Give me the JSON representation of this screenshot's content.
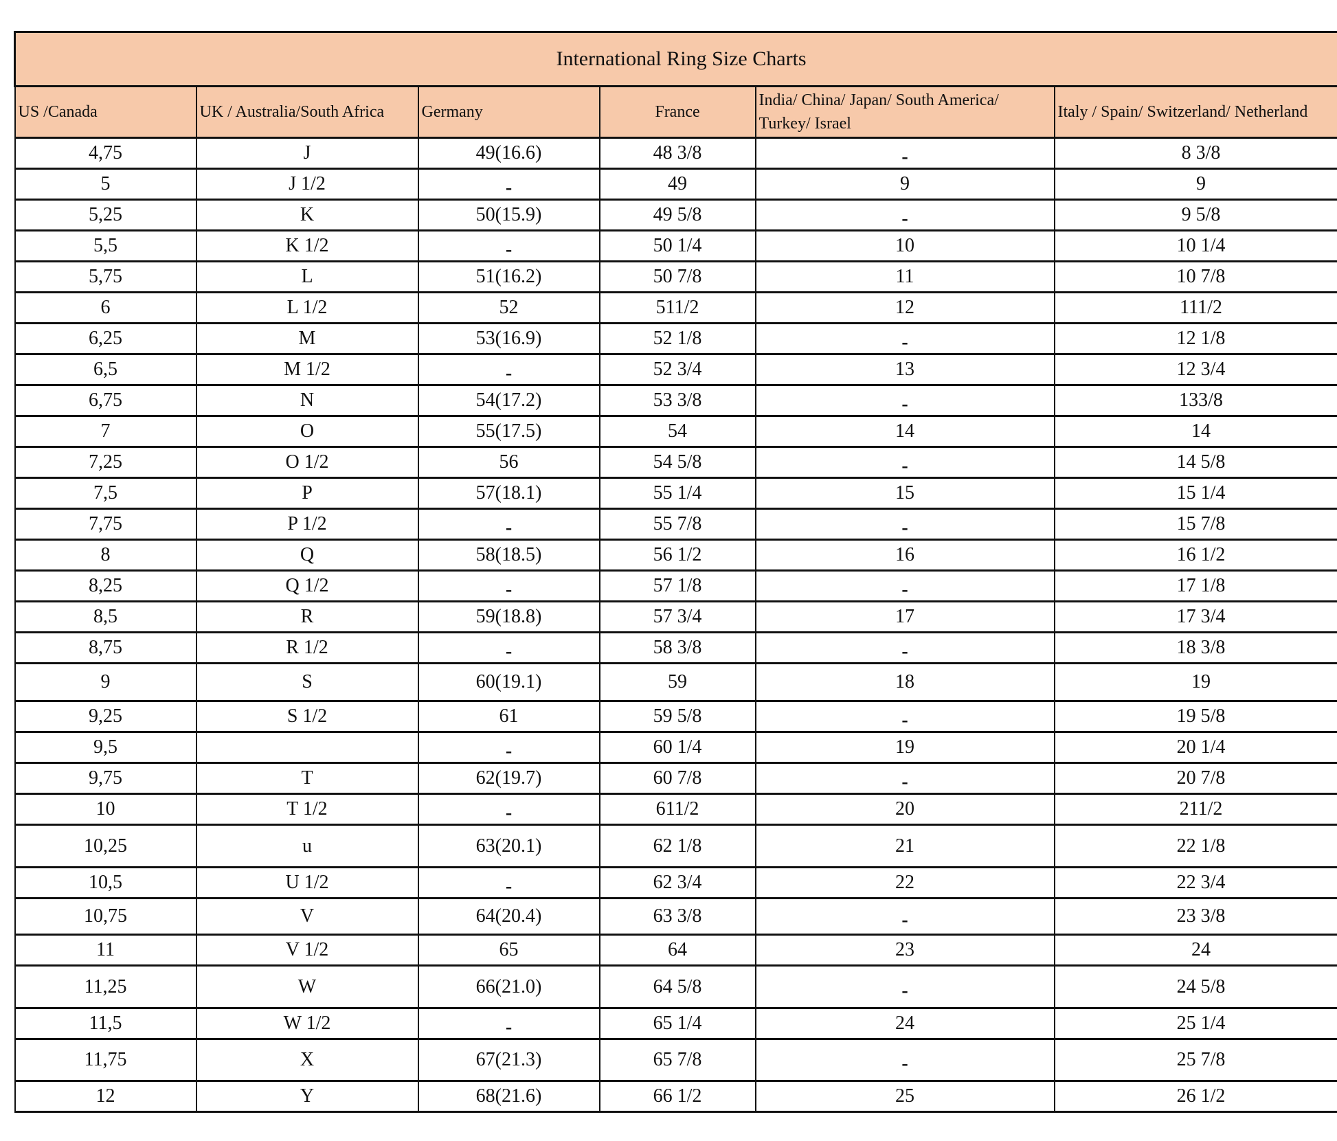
{
  "title": "International Ring Size Charts",
  "header_bg": "#f7c9aa",
  "columns": [
    "US /Canada",
    "UK /  Australia/South Africa",
    "Germany",
    "France",
    "India/ China/ Japan/ South America/ Turkey/ Israel",
    "Italy /  Spain/ Switzerland/ Netherland"
  ],
  "rows": [
    [
      "4,75",
      "J",
      "49(16.6)",
      "48 3/8",
      "-",
      "8 3/8"
    ],
    [
      "5",
      "J 1/2",
      "-",
      "49",
      "9",
      "9"
    ],
    [
      "5,25",
      "K",
      "50(15.9)",
      "49 5/8",
      "-",
      "9 5/8"
    ],
    [
      "5,5",
      "K 1/2",
      "-",
      "50 1/4",
      "10",
      "10 1/4"
    ],
    [
      "5,75",
      "L",
      "51(16.2)",
      "50 7/8",
      "11",
      "10 7/8"
    ],
    [
      "6",
      "L 1/2",
      "52",
      "511/2",
      "12",
      "111/2"
    ],
    [
      "6,25",
      "M",
      "53(16.9)",
      "52 1/8",
      "-",
      "12 1/8"
    ],
    [
      "6,5",
      "M 1/2",
      "-",
      "52 3/4",
      "13",
      "12 3/4"
    ],
    [
      "6,75",
      "N",
      "54(17.2)",
      "53 3/8",
      "-",
      "133/8"
    ],
    [
      "7",
      "O",
      "55(17.5)",
      "54",
      "14",
      "14"
    ],
    [
      "7,25",
      "O 1/2",
      "56",
      "54 5/8",
      "-",
      "14 5/8"
    ],
    [
      "7,5",
      "P",
      "57(18.1)",
      "55 1/4",
      "15",
      "15 1/4"
    ],
    [
      "7,75",
      "P 1/2",
      "-",
      "55 7/8",
      "-",
      "15 7/8"
    ],
    [
      "8",
      "Q",
      "58(18.5)",
      "56 1/2",
      "16",
      "16 1/2"
    ],
    [
      "8,25",
      "Q 1/2",
      "-",
      "57 1/8",
      "-",
      "17 1/8"
    ],
    [
      "8,5",
      "R",
      "59(18.8)",
      "57 3/4",
      "17",
      "17 3/4"
    ],
    [
      "8,75",
      "R 1/2",
      "-",
      "58 3/8",
      "-",
      "18 3/8"
    ],
    [
      "9",
      "S",
      "60(19.1)",
      "59",
      "18",
      "19"
    ],
    [
      "9,25",
      "S 1/2",
      "61",
      "59 5/8",
      "-",
      "19 5/8"
    ],
    [
      "9,5",
      "",
      "-",
      "60 1/4",
      "19",
      "20 1/4"
    ],
    [
      "9,75",
      "T",
      "62(19.7)",
      "60 7/8",
      "-",
      "20 7/8"
    ],
    [
      "10",
      "T 1/2",
      "-",
      "611/2",
      "20",
      "211/2"
    ],
    [
      "10,25",
      "u",
      "63(20.1)",
      "62 1/8",
      "21",
      "22 1/8"
    ],
    [
      "10,5",
      "U 1/2",
      "-",
      "62 3/4",
      "22",
      "22 3/4"
    ],
    [
      "10,75",
      "V",
      "64(20.4)",
      "63 3/8",
      "-",
      "23 3/8"
    ],
    [
      "11",
      "V 1/2",
      "65",
      "64",
      "23",
      "24"
    ],
    [
      "11,25",
      "W",
      "66(21.0)",
      "64 5/8",
      "-",
      "24 5/8"
    ],
    [
      "11,5",
      "W 1/2",
      "-",
      "65 1/4",
      "24",
      "25 1/4"
    ],
    [
      "11,75",
      "X",
      "67(21.3)",
      "65 7/8",
      "-",
      "25 7/8"
    ],
    [
      "12",
      "Y",
      "68(21.6)",
      "66 1/2",
      "25",
      "26 1/2"
    ]
  ]
}
